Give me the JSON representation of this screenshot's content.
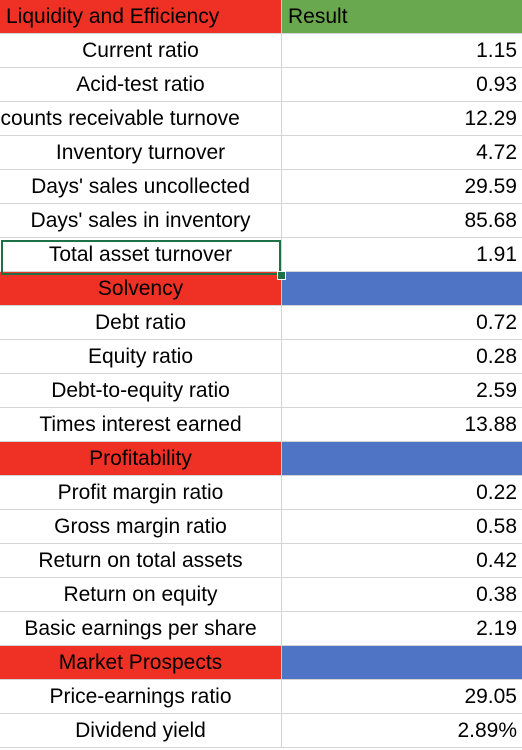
{
  "colors": {
    "section_label_bg": "#ee3124",
    "section_result_bg": "#4f73c5",
    "header_result_bg": "#6aa84f",
    "selection_border": "#1e7145"
  },
  "header": {
    "label": "Liquidity and Efficiency",
    "result": "Result"
  },
  "rows": [
    {
      "label": "Current ratio",
      "value": "1.15"
    },
    {
      "label": "Acid-test ratio",
      "value": "0.93"
    },
    {
      "label": "ccounts receivable turnove",
      "value": "12.29"
    },
    {
      "label": "Inventory turnover",
      "value": "4.72"
    },
    {
      "label": "Days' sales uncollected",
      "value": "29.59"
    },
    {
      "label": "Days' sales in inventory",
      "value": "85.68"
    },
    {
      "label": "Total asset turnover",
      "value": "1.91"
    },
    {
      "label": "Solvency",
      "value": ""
    },
    {
      "label": "Debt ratio",
      "value": "0.72"
    },
    {
      "label": "Equity ratio",
      "value": "0.28"
    },
    {
      "label": "Debt-to-equity ratio",
      "value": "2.59"
    },
    {
      "label": "Times interest earned",
      "value": "13.88"
    },
    {
      "label": "Profitability",
      "value": ""
    },
    {
      "label": "Profit margin ratio",
      "value": "0.22"
    },
    {
      "label": "Gross margin ratio",
      "value": "0.58"
    },
    {
      "label": "Return on total assets",
      "value": "0.42"
    },
    {
      "label": "Return on equity",
      "value": "0.38"
    },
    {
      "label": "Basic earnings per share",
      "value": "2.19"
    },
    {
      "label": "Market Prospects",
      "value": ""
    },
    {
      "label": "Price-earnings ratio",
      "value": "29.05"
    },
    {
      "label": "Dividend yield",
      "value": "2.89%"
    }
  ]
}
